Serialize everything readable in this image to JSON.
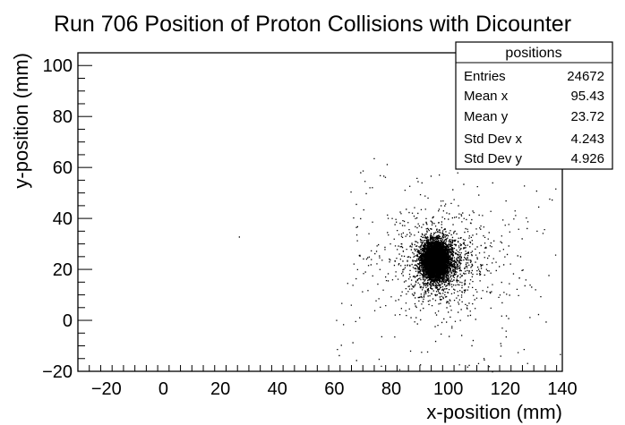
{
  "chart_data": {
    "type": "scatter",
    "title": "Run 706 Position of Proton Collisions with Dicounter",
    "xlabel": "x-position (mm)",
    "ylabel": "y-position (mm)",
    "xlim": [
      -30,
      140
    ],
    "ylim": [
      -20,
      105
    ],
    "x_ticks": [
      -20,
      0,
      20,
      40,
      60,
      80,
      100,
      120,
      140
    ],
    "y_ticks": [
      -20,
      0,
      20,
      40,
      60,
      80,
      100
    ],
    "grid": false,
    "series": [
      {
        "distribution": "dense elliptical core with sparse scattered halo",
        "color": "#000000",
        "entries": 24672,
        "mean_x": 95.43,
        "mean_y": 23.72,
        "std_dev_x": 4.243,
        "std_dev_y": 4.926
      }
    ],
    "stats_box": {
      "title": "positions",
      "placement": "top-right",
      "rows": [
        {
          "label": "Entries",
          "value": "24672"
        },
        {
          "label": "Mean x",
          "value": "95.43"
        },
        {
          "label": "Mean y",
          "value": "23.72"
        },
        {
          "label": "Std Dev x",
          "value": "4.243"
        },
        {
          "label": "Std Dev y",
          "value": "4.926"
        }
      ]
    }
  }
}
